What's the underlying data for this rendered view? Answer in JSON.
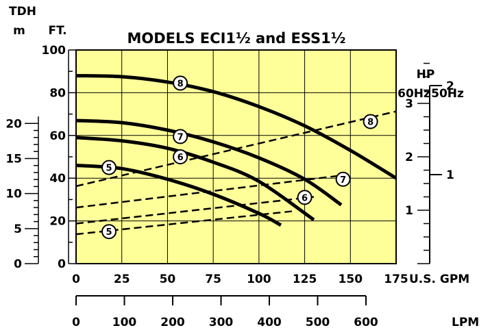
{
  "chart_data": {
    "type": "line",
    "title": "MODELS ECI1½ and ESS1½",
    "x_axis": {
      "label": "U.S. GPM",
      "range": [
        0,
        175
      ],
      "ticks": [
        0,
        25,
        50,
        75,
        100,
        125,
        150,
        175
      ],
      "tick_labels": [
        "0",
        "25",
        "50",
        "75",
        "100",
        "125",
        "150",
        "175"
      ]
    },
    "x2_axis": {
      "label": "LPM",
      "range": [
        0,
        662.4
      ],
      "ticks": [
        0,
        100,
        200,
        300,
        400,
        500,
        600
      ],
      "tick_labels": [
        "0",
        "100",
        "200",
        "300",
        "400",
        "500",
        "600"
      ]
    },
    "y_axis": {
      "label_top": "TDH",
      "unit": "FT.",
      "range": [
        0,
        100
      ],
      "ticks": [
        0,
        20,
        40,
        60,
        80,
        100
      ],
      "tick_labels": [
        "0",
        "20",
        "40",
        "60",
        "80",
        "100"
      ]
    },
    "y_axis_m": {
      "unit": "m",
      "range": [
        0,
        30.48
      ],
      "ticks": [
        0,
        5,
        10,
        15,
        20
      ],
      "tick_labels": [
        "0",
        "5",
        "10",
        "15",
        "20"
      ]
    },
    "hp_axis": {
      "label": "HP",
      "col_60": "60Hz",
      "col_50": "50Hz",
      "hp60_range": [
        0,
        4
      ],
      "hp60_ticks": [
        1,
        2,
        3
      ],
      "hp60_labels": [
        "1",
        "2",
        "3"
      ],
      "hp50_range": [
        0,
        2.4
      ],
      "hp50_ticks": [
        1,
        2
      ],
      "hp50_labels": [
        "1",
        "2"
      ]
    },
    "grid": true,
    "background": "#FFFF99",
    "head_curves": [
      {
        "name": "8",
        "x": [
          0,
          25,
          50,
          75,
          100,
          125,
          150,
          175
        ],
        "y": [
          88,
          87.5,
          85,
          80.5,
          73.5,
          64.5,
          53,
          40
        ]
      },
      {
        "name": "7",
        "x": [
          0,
          25,
          50,
          75,
          100,
          125,
          145
        ],
        "y": [
          67,
          66,
          62.5,
          57,
          49.5,
          39.5,
          27.5
        ]
      },
      {
        "name": "6",
        "x": [
          0,
          25,
          50,
          75,
          100,
          130
        ],
        "y": [
          59,
          57.5,
          54,
          47.5,
          38.5,
          20.5
        ]
      },
      {
        "name": "5",
        "x": [
          0,
          25,
          50,
          75,
          100,
          112
        ],
        "y": [
          46,
          44.5,
          39.5,
          32.5,
          23.5,
          18
        ]
      }
    ],
    "hp_curves": [
      {
        "name": "8",
        "x": [
          0,
          175
        ],
        "hp60": [
          1.45,
          2.85
        ]
      },
      {
        "name": "7",
        "x": [
          0,
          145
        ],
        "hp60": [
          1.05,
          1.65
        ]
      },
      {
        "name": "6",
        "x": [
          0,
          130
        ],
        "hp60": [
          0.75,
          1.25
        ]
      },
      {
        "name": "5",
        "x": [
          0,
          118
        ],
        "hp60": [
          0.55,
          0.98
        ]
      }
    ],
    "curve_labels": [
      {
        "text": "8",
        "x": 57,
        "y": 84.5
      },
      {
        "text": "7",
        "x": 57,
        "y": 59.5
      },
      {
        "text": "6",
        "x": 57,
        "y": 50
      },
      {
        "text": "5",
        "x": 18,
        "y": 45
      },
      {
        "text": "8",
        "x": 161,
        "y": 66.5
      },
      {
        "text": "7",
        "x": 146,
        "y": 39.5
      },
      {
        "text": "6",
        "x": 125,
        "y": 31
      },
      {
        "text": "5",
        "x": 18,
        "y": 15
      }
    ]
  }
}
